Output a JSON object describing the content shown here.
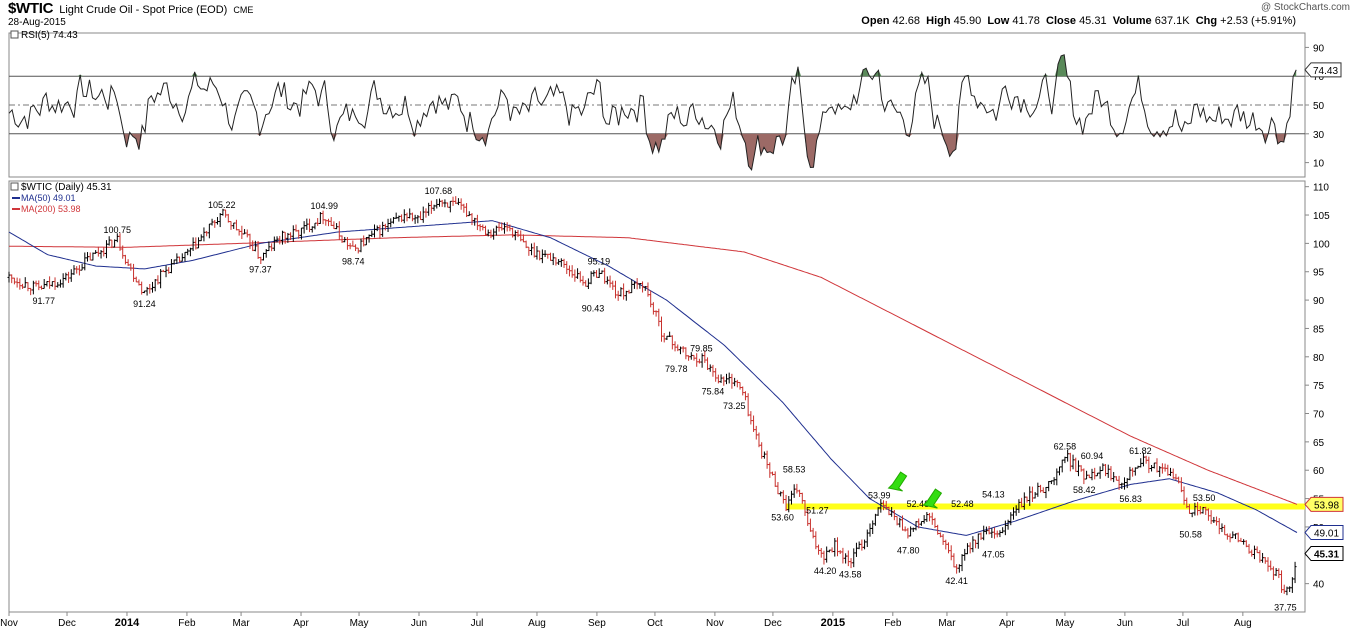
{
  "header": {
    "symbol": "$WTIC",
    "description": "Light Crude Oil - Spot Price (EOD)",
    "exchange": "CME",
    "date": "28-Aug-2015",
    "brand": "@ StockCharts.com",
    "open_label": "Open",
    "open": "42.68",
    "high_label": "High",
    "high": "45.90",
    "low_label": "Low",
    "low": "41.78",
    "close_label": "Close",
    "close": "45.31",
    "volume_label": "Volume",
    "volume": "637.1K",
    "chg_label": "Chg",
    "chg": "+2.53 (+5.91%)"
  },
  "chart_data": {
    "type": "line",
    "colors": {
      "price_up": "#000000",
      "price_down": "#c8302c",
      "ma50": "#1f2f8f",
      "ma200": "#d0363a",
      "support": "#ffff1a",
      "rsi_over": "#5a8a5a",
      "rsi_under": "#9c6a66",
      "arrow": "#33dd11"
    },
    "rsi_panel": {
      "label": "RSI(5) 74.43",
      "current": 74.43,
      "current_label": "74.43",
      "ylim": [
        0,
        100
      ],
      "ticks": [
        10,
        30,
        50,
        70,
        90
      ],
      "tick_labels": [
        "10",
        "30",
        "50",
        "70",
        "90"
      ],
      "overbought": 70,
      "oversold": 30,
      "midline": 50
    },
    "price_panel": {
      "legend": {
        "title": "$WTIC (Daily) 45.31",
        "ma50": "MA(50) 49.01",
        "ma200": "MA(200) 53.98"
      },
      "ylim": [
        35,
        111
      ],
      "ticks": [
        40,
        45,
        50,
        55,
        60,
        65,
        70,
        75,
        80,
        85,
        90,
        95,
        100,
        105,
        110
      ],
      "tick_labels": [
        "40",
        "45",
        "50",
        "55",
        "60",
        "65",
        "70",
        "75",
        "80",
        "85",
        "90",
        "95",
        "100",
        "105",
        "110"
      ],
      "x_labels": [
        {
          "label": "Nov",
          "day": 0
        },
        {
          "label": "Dec",
          "day": 30
        },
        {
          "label": "2014",
          "day": 61
        },
        {
          "label": "Feb",
          "day": 92
        },
        {
          "label": "Mar",
          "day": 120
        },
        {
          "label": "Apr",
          "day": 151
        },
        {
          "label": "May",
          "day": 181
        },
        {
          "label": "Jun",
          "day": 212
        },
        {
          "label": "Jul",
          "day": 242
        },
        {
          "label": "Aug",
          "day": 273
        },
        {
          "label": "Sep",
          "day": 304
        },
        {
          "label": "Oct",
          "day": 334
        },
        {
          "label": "Nov",
          "day": 365
        },
        {
          "label": "Dec",
          "day": 395
        },
        {
          "label": "2015",
          "day": 426
        },
        {
          "label": "Feb",
          "day": 457
        },
        {
          "label": "Mar",
          "day": 485
        },
        {
          "label": "Apr",
          "day": 516
        },
        {
          "label": "May",
          "day": 546
        },
        {
          "label": "Jun",
          "day": 577
        },
        {
          "label": "Jul",
          "day": 607
        },
        {
          "label": "Aug",
          "day": 638
        }
      ],
      "x_bold": [
        "2014",
        "2015"
      ],
      "x_range_days": [
        0,
        666
      ],
      "price_path": [
        {
          "day": 0,
          "value": 94
        },
        {
          "day": 15,
          "value": 92
        },
        {
          "day": 30,
          "value": 94
        },
        {
          "day": 40,
          "value": 97
        },
        {
          "day": 56,
          "value": 100.75
        },
        {
          "day": 62,
          "value": 96
        },
        {
          "day": 70,
          "value": 91.24
        },
        {
          "day": 80,
          "value": 95
        },
        {
          "day": 92,
          "value": 98
        },
        {
          "day": 110,
          "value": 105.22
        },
        {
          "day": 125,
          "value": 100
        },
        {
          "day": 130,
          "value": 97.37
        },
        {
          "day": 140,
          "value": 101
        },
        {
          "day": 150,
          "value": 102
        },
        {
          "day": 163,
          "value": 104.99
        },
        {
          "day": 172,
          "value": 101
        },
        {
          "day": 178,
          "value": 98.74
        },
        {
          "day": 190,
          "value": 102
        },
        {
          "day": 205,
          "value": 105
        },
        {
          "day": 212,
          "value": 104
        },
        {
          "day": 222,
          "value": 107.68
        },
        {
          "day": 235,
          "value": 106
        },
        {
          "day": 248,
          "value": 102
        },
        {
          "day": 258,
          "value": 103
        },
        {
          "day": 268,
          "value": 99
        },
        {
          "day": 284,
          "value": 97
        },
        {
          "day": 298,
          "value": 93
        },
        {
          "day": 305,
          "value": 95.19
        },
        {
          "day": 315,
          "value": 91
        },
        {
          "day": 328,
          "value": 93
        },
        {
          "day": 338,
          "value": 84
        },
        {
          "day": 352,
          "value": 79.78
        },
        {
          "day": 358,
          "value": 79.85
        },
        {
          "day": 368,
          "value": 75.84
        },
        {
          "day": 375,
          "value": 76
        },
        {
          "day": 380,
          "value": 73.25
        },
        {
          "day": 385,
          "value": 67
        },
        {
          "day": 393,
          "value": 60
        },
        {
          "day": 402,
          "value": 53.6
        },
        {
          "day": 408,
          "value": 57
        },
        {
          "day": 415,
          "value": 48
        },
        {
          "day": 421,
          "value": 45
        },
        {
          "day": 427,
          "value": 47
        },
        {
          "day": 434,
          "value": 43.58
        },
        {
          "day": 442,
          "value": 47.5
        },
        {
          "day": 450,
          "value": 53.99
        },
        {
          "day": 457,
          "value": 52
        },
        {
          "day": 465,
          "value": 49
        },
        {
          "day": 475,
          "value": 52
        },
        {
          "day": 482,
          "value": 48
        },
        {
          "day": 490,
          "value": 42.41
        },
        {
          "day": 497,
          "value": 47
        },
        {
          "day": 505,
          "value": 49
        },
        {
          "day": 511,
          "value": 48
        },
        {
          "day": 520,
          "value": 53
        },
        {
          "day": 530,
          "value": 56
        },
        {
          "day": 540,
          "value": 58
        },
        {
          "day": 546,
          "value": 62.58
        },
        {
          "day": 556,
          "value": 59
        },
        {
          "day": 565,
          "value": 60.5
        },
        {
          "day": 575,
          "value": 58
        },
        {
          "day": 585,
          "value": 61.82
        },
        {
          "day": 595,
          "value": 60
        },
        {
          "day": 603,
          "value": 59
        },
        {
          "day": 610,
          "value": 53
        },
        {
          "day": 615,
          "value": 53.5
        },
        {
          "day": 625,
          "value": 50
        },
        {
          "day": 635,
          "value": 48
        },
        {
          "day": 645,
          "value": 45
        },
        {
          "day": 655,
          "value": 42
        },
        {
          "day": 660,
          "value": 38
        },
        {
          "day": 663,
          "value": 40.5
        },
        {
          "day": 666,
          "value": 45.31
        }
      ],
      "ma50_path": [
        {
          "day": 0,
          "value": 102
        },
        {
          "day": 20,
          "value": 98
        },
        {
          "day": 45,
          "value": 96
        },
        {
          "day": 70,
          "value": 95.5
        },
        {
          "day": 95,
          "value": 97
        },
        {
          "day": 130,
          "value": 100
        },
        {
          "day": 170,
          "value": 102
        },
        {
          "day": 210,
          "value": 103
        },
        {
          "day": 250,
          "value": 104
        },
        {
          "day": 280,
          "value": 101
        },
        {
          "day": 310,
          "value": 96
        },
        {
          "day": 340,
          "value": 90
        },
        {
          "day": 370,
          "value": 82
        },
        {
          "day": 400,
          "value": 72
        },
        {
          "day": 425,
          "value": 62
        },
        {
          "day": 445,
          "value": 55
        },
        {
          "day": 470,
          "value": 50
        },
        {
          "day": 495,
          "value": 48.5
        },
        {
          "day": 520,
          "value": 51
        },
        {
          "day": 550,
          "value": 54.5
        },
        {
          "day": 580,
          "value": 57.5
        },
        {
          "day": 600,
          "value": 58.5
        },
        {
          "day": 625,
          "value": 56
        },
        {
          "day": 645,
          "value": 53
        },
        {
          "day": 666,
          "value": 49.01
        }
      ],
      "ma200_path": [
        {
          "day": 0,
          "value": 99.5
        },
        {
          "day": 60,
          "value": 99.3
        },
        {
          "day": 120,
          "value": 100
        },
        {
          "day": 200,
          "value": 101
        },
        {
          "day": 260,
          "value": 101.5
        },
        {
          "day": 320,
          "value": 101
        },
        {
          "day": 380,
          "value": 98.5
        },
        {
          "day": 420,
          "value": 94
        },
        {
          "day": 460,
          "value": 87
        },
        {
          "day": 500,
          "value": 80
        },
        {
          "day": 540,
          "value": 73
        },
        {
          "day": 580,
          "value": 66
        },
        {
          "day": 620,
          "value": 60
        },
        {
          "day": 666,
          "value": 53.98
        }
      ],
      "support_line": {
        "value": 53.6,
        "day_start": 402,
        "day_end": 666
      },
      "arrows": [
        {
          "day": 460,
          "value": 56.5
        },
        {
          "day": 478,
          "value": 53.5
        }
      ],
      "annotations": [
        {
          "text": "91.77",
          "day": 18,
          "value": 91.77,
          "pos": "below"
        },
        {
          "text": "100.75",
          "day": 56,
          "value": 100.75,
          "pos": "above"
        },
        {
          "text": "91.24",
          "day": 70,
          "value": 91.24,
          "pos": "below"
        },
        {
          "text": "105.22",
          "day": 110,
          "value": 105.22,
          "pos": "above"
        },
        {
          "text": "97.37",
          "day": 130,
          "value": 97.37,
          "pos": "below"
        },
        {
          "text": "104.99",
          "day": 163,
          "value": 104.99,
          "pos": "above"
        },
        {
          "text": "98.74",
          "day": 178,
          "value": 98.74,
          "pos": "below"
        },
        {
          "text": "107.68",
          "day": 222,
          "value": 107.68,
          "pos": "above"
        },
        {
          "text": "95.19",
          "day": 305,
          "value": 95.19,
          "pos": "above"
        },
        {
          "text": "90.43",
          "day": 302,
          "value": 90.43,
          "pos": "below"
        },
        {
          "text": "79.85",
          "day": 358,
          "value": 79.85,
          "pos": "above"
        },
        {
          "text": "79.78",
          "day": 345,
          "value": 79.78,
          "pos": "below"
        },
        {
          "text": "75.84",
          "day": 364,
          "value": 75.84,
          "pos": "below"
        },
        {
          "text": "73.25",
          "day": 375,
          "value": 73.25,
          "pos": "below"
        },
        {
          "text": "58.53",
          "day": 406,
          "value": 58.53,
          "pos": "above"
        },
        {
          "text": "53.60",
          "day": 400,
          "value": 53.6,
          "pos": "below"
        },
        {
          "text": "51.27",
          "day": 418,
          "value": 51.27,
          "pos": "above"
        },
        {
          "text": "44.20",
          "day": 422,
          "value": 44.2,
          "pos": "below"
        },
        {
          "text": "43.58",
          "day": 435,
          "value": 43.58,
          "pos": "below"
        },
        {
          "text": "53.99",
          "day": 450,
          "value": 53.99,
          "pos": "above"
        },
        {
          "text": "52.48",
          "day": 470,
          "value": 52.48,
          "pos": "above"
        },
        {
          "text": "47.80",
          "day": 465,
          "value": 47.8,
          "pos": "below"
        },
        {
          "text": "42.41",
          "day": 490,
          "value": 42.41,
          "pos": "below"
        },
        {
          "text": "52.48",
          "day": 493,
          "value": 52.48,
          "pos": "above"
        },
        {
          "text": "54.13",
          "day": 509,
          "value": 54.13,
          "pos": "above"
        },
        {
          "text": "47.05",
          "day": 509,
          "value": 47.05,
          "pos": "below"
        },
        {
          "text": "62.58",
          "day": 546,
          "value": 62.58,
          "pos": "above"
        },
        {
          "text": "60.94",
          "day": 560,
          "value": 60.94,
          "pos": "above"
        },
        {
          "text": "58.42",
          "day": 556,
          "value": 58.42,
          "pos": "below"
        },
        {
          "text": "61.82",
          "day": 585,
          "value": 61.82,
          "pos": "above"
        },
        {
          "text": "56.83",
          "day": 580,
          "value": 56.83,
          "pos": "below"
        },
        {
          "text": "53.50",
          "day": 618,
          "value": 53.5,
          "pos": "above"
        },
        {
          "text": "50.58",
          "day": 611,
          "value": 50.58,
          "pos": "below"
        },
        {
          "text": "37.75",
          "day": 660,
          "value": 37.75,
          "pos": "below"
        }
      ],
      "tags": [
        {
          "text": "53.98",
          "value": 53.98,
          "style": "ma200"
        },
        {
          "text": "49.01",
          "value": 49.01,
          "style": "ma50"
        },
        {
          "text": "45.31",
          "value": 45.31,
          "style": "last"
        }
      ]
    }
  }
}
